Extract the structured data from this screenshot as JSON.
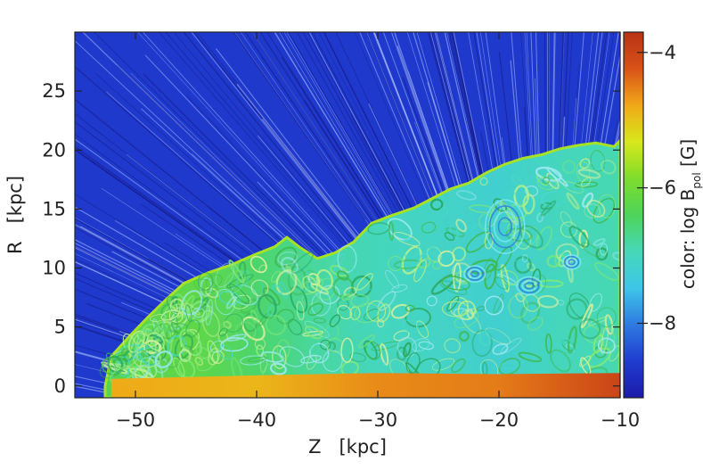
{
  "chart_data": {
    "type": "heatmap",
    "title": "",
    "xlabel": "Z   [kpc]",
    "ylabel": "R   [kpc]",
    "xlim": [
      -55,
      -10
    ],
    "ylim": [
      -1,
      30
    ],
    "x_ticks": [
      -50,
      -40,
      -30,
      -20,
      -10
    ],
    "x_tick_labels": [
      "−50",
      "−40",
      "−30",
      "−20",
      "−10"
    ],
    "y_ticks": [
      0,
      5,
      10,
      15,
      20,
      25
    ],
    "y_tick_labels": [
      "0",
      "5",
      "10",
      "15",
      "20",
      "25"
    ],
    "colorbar": {
      "label_prefix": "color: log B",
      "label_sub": "pol",
      "label_suffix": " [G]",
      "range": [
        -9.1,
        -3.7
      ],
      "ticks": [
        -8,
        -6,
        -4
      ],
      "tick_labels": [
        "−8",
        "−6",
        "−4"
      ],
      "colormap": [
        "#1e1aa8",
        "#1f3cd0",
        "#2f7ae0",
        "#3ec6e8",
        "#46d8b8",
        "#4ed45a",
        "#7edc2c",
        "#d8e81c",
        "#f0a818",
        "#d85218",
        "#b83218"
      ]
    },
    "background_level": -8.6,
    "boundary": {
      "z": [
        -52.5,
        -52,
        -50.5,
        -49,
        -47.5,
        -46,
        -44,
        -42,
        -40,
        -38.5,
        -37.5,
        -36.5,
        -35,
        -33.5,
        -32,
        -30.5,
        -29,
        -27,
        -25.5,
        -24,
        -22.5,
        -21,
        -19.5,
        -18,
        -16.5,
        -15,
        -13.5,
        -12,
        -10.5,
        -10
      ],
      "r": [
        0,
        2.5,
        4.2,
        5.8,
        7.3,
        8.7,
        9.6,
        10.3,
        11.2,
        11.8,
        12.6,
        11.8,
        10.8,
        11.3,
        12.2,
        13.8,
        14.4,
        15.1,
        15.9,
        16.7,
        17.2,
        18.1,
        18.8,
        19.3,
        19.6,
        20.1,
        20.4,
        20.6,
        20.3,
        20.8
      ]
    },
    "interior_levels": {
      "z": [
        -52,
        -45,
        -40,
        -35,
        -30,
        -25,
        -20,
        -15,
        -10
      ],
      "level": [
        -6.3,
        -6.2,
        -6.5,
        -6.8,
        -7.0,
        -7.1,
        -7.2,
        -7.0,
        -6.9
      ]
    },
    "hot_base": {
      "z": [
        -52,
        -40,
        -30,
        -20,
        -10
      ],
      "top_r": [
        0.6,
        0.9,
        1.1,
        1.0,
        1.1
      ],
      "level": [
        -4.8,
        -4.9,
        -4.6,
        -4.5,
        -4.0
      ]
    }
  }
}
